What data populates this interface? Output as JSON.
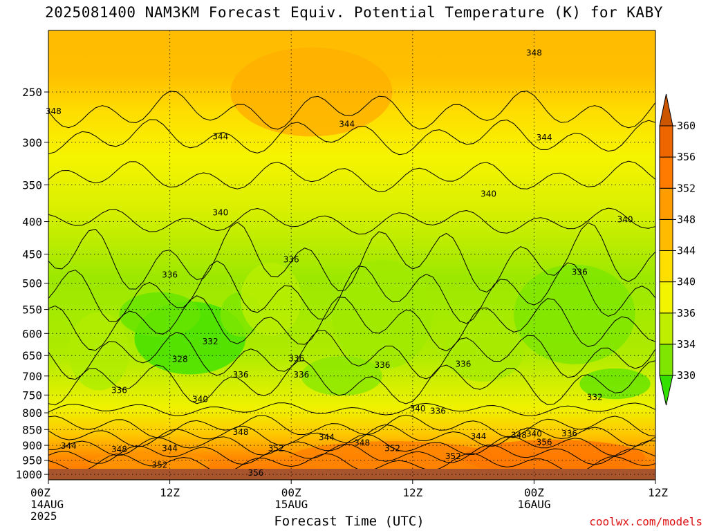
{
  "title": "2025081400 NAM3KM Forecast Equiv. Potential Temperature (K) for KABY",
  "xlabel": "Forecast Time (UTC)",
  "credit": "coolwx.com/models",
  "chart_data": {
    "type": "heatmap",
    "title": "2025081400 NAM3KM Forecast Equiv. Potential Temperature (K) for KABY",
    "xlabel": "Forecast Time (UTC)",
    "ylabel": "",
    "x_range_hours": [
      0,
      60
    ],
    "y_range_hPa": [
      1020,
      200
    ],
    "y_scale": "log",
    "grid": true,
    "x_ticks": [
      {
        "hour": 0,
        "lines": [
          "00Z",
          "14AUG",
          "2025"
        ]
      },
      {
        "hour": 12,
        "lines": [
          "12Z"
        ]
      },
      {
        "hour": 24,
        "lines": [
          "00Z",
          "15AUG"
        ]
      },
      {
        "hour": 36,
        "lines": [
          "12Z"
        ]
      },
      {
        "hour": 48,
        "lines": [
          "00Z",
          "16AUG"
        ]
      },
      {
        "hour": 60,
        "lines": [
          "12Z"
        ]
      }
    ],
    "y_ticks": [
      250,
      300,
      350,
      400,
      450,
      500,
      550,
      600,
      650,
      700,
      750,
      800,
      850,
      900,
      950,
      1000
    ],
    "colorbar": {
      "levels": [
        330,
        334,
        336,
        340,
        344,
        348,
        352,
        356,
        360
      ],
      "colors": [
        "#33e000",
        "#7ee600",
        "#bfee00",
        "#f3f400",
        "#ffdf00",
        "#ffbb00",
        "#ff9c00",
        "#ff7b00",
        "#ee6600",
        "#cc5500"
      ]
    },
    "contour_labels": [
      {
        "value": 348,
        "hour": 48,
        "p": 217
      },
      {
        "value": 348,
        "hour": 0.5,
        "p": 268
      },
      {
        "value": 344,
        "hour": 17,
        "p": 294
      },
      {
        "value": 344,
        "hour": 29.5,
        "p": 281
      },
      {
        "value": 344,
        "hour": 49,
        "p": 295
      },
      {
        "value": 340,
        "hour": 17,
        "p": 387
      },
      {
        "value": 340,
        "hour": 43.5,
        "p": 362
      },
      {
        "value": 340,
        "hour": 57,
        "p": 397
      },
      {
        "value": 336,
        "hour": 24,
        "p": 459
      },
      {
        "value": 336,
        "hour": 12,
        "p": 485
      },
      {
        "value": 336,
        "hour": 52.5,
        "p": 480
      },
      {
        "value": 332,
        "hour": 16,
        "p": 618
      },
      {
        "value": 328,
        "hour": 13,
        "p": 659
      },
      {
        "value": 336,
        "hour": 24.5,
        "p": 657
      },
      {
        "value": 336,
        "hour": 33,
        "p": 673
      },
      {
        "value": 336,
        "hour": 41,
        "p": 670
      },
      {
        "value": 336,
        "hour": 25,
        "p": 697
      },
      {
        "value": 336,
        "hour": 19,
        "p": 697
      },
      {
        "value": 336,
        "hour": 7,
        "p": 737
      },
      {
        "value": 340,
        "hour": 15,
        "p": 762
      },
      {
        "value": 332,
        "hour": 54,
        "p": 756
      },
      {
        "value": 340,
        "hour": 36.5,
        "p": 788
      },
      {
        "value": 336,
        "hour": 38.5,
        "p": 795
      },
      {
        "value": 348,
        "hour": 19,
        "p": 858
      },
      {
        "value": 344,
        "hour": 27.5,
        "p": 874
      },
      {
        "value": 344,
        "hour": 42.5,
        "p": 871
      },
      {
        "value": 348,
        "hour": 46.5,
        "p": 868
      },
      {
        "value": 340,
        "hour": 48,
        "p": 863
      },
      {
        "value": 336,
        "hour": 51.5,
        "p": 862
      },
      {
        "value": 356,
        "hour": 49,
        "p": 890
      },
      {
        "value": 348,
        "hour": 31,
        "p": 892
      },
      {
        "value": 352,
        "hour": 34,
        "p": 910
      },
      {
        "value": 352,
        "hour": 22.5,
        "p": 910
      },
      {
        "value": 344,
        "hour": 2,
        "p": 902
      },
      {
        "value": 348,
        "hour": 7,
        "p": 913
      },
      {
        "value": 344,
        "hour": 12,
        "p": 910
      },
      {
        "value": 352,
        "hour": 11,
        "p": 966
      },
      {
        "value": 352,
        "hour": 40,
        "p": 937
      },
      {
        "value": 356,
        "hour": 20.5,
        "p": 995
      }
    ]
  }
}
